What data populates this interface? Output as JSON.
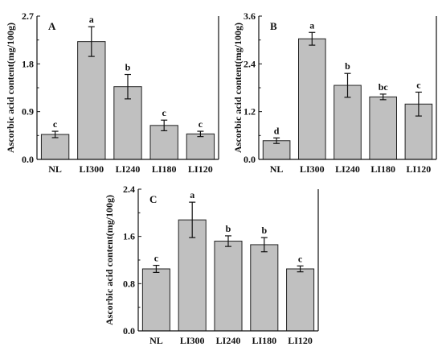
{
  "chart_data": [
    {
      "type": "bar",
      "panel_label": "A",
      "ylabel": "Ascorbic acid content(mg/100g)",
      "ylim": [
        0,
        2.7
      ],
      "yticks": [
        "0.0",
        "0.9",
        "1.8",
        "2.7"
      ],
      "categories": [
        "NL",
        "LI300",
        "LI240",
        "LI180",
        "LI120"
      ],
      "values": [
        0.47,
        2.22,
        1.37,
        0.64,
        0.48
      ],
      "errors": [
        0.06,
        0.28,
        0.23,
        0.1,
        0.05
      ],
      "significance": [
        "c",
        "a",
        "b",
        "c",
        "c"
      ]
    },
    {
      "type": "bar",
      "panel_label": "B",
      "ylabel": "Ascorbic acid content(mg/100g)",
      "ylim": [
        0,
        3.6
      ],
      "yticks": [
        "0.0",
        "1.2",
        "2.4",
        "3.6"
      ],
      "categories": [
        "NL",
        "LI300",
        "LI240",
        "LI180",
        "LI120"
      ],
      "values": [
        0.47,
        3.03,
        1.86,
        1.57,
        1.39
      ],
      "errors": [
        0.07,
        0.16,
        0.3,
        0.07,
        0.3
      ],
      "significance": [
        "d",
        "a",
        "b",
        "bc",
        "c"
      ]
    },
    {
      "type": "bar",
      "panel_label": "C",
      "ylabel": "Ascorbic acid content(mg/100g)",
      "ylim": [
        0,
        2.4
      ],
      "yticks": [
        "0.0",
        "0.8",
        "1.6",
        "2.4"
      ],
      "categories": [
        "NL",
        "LI300",
        "LI240",
        "LI180",
        "LI120"
      ],
      "values": [
        1.05,
        1.88,
        1.52,
        1.46,
        1.05
      ],
      "errors": [
        0.06,
        0.3,
        0.09,
        0.12,
        0.05
      ],
      "significance": [
        "c",
        "a",
        "b",
        "b",
        "c"
      ]
    }
  ]
}
